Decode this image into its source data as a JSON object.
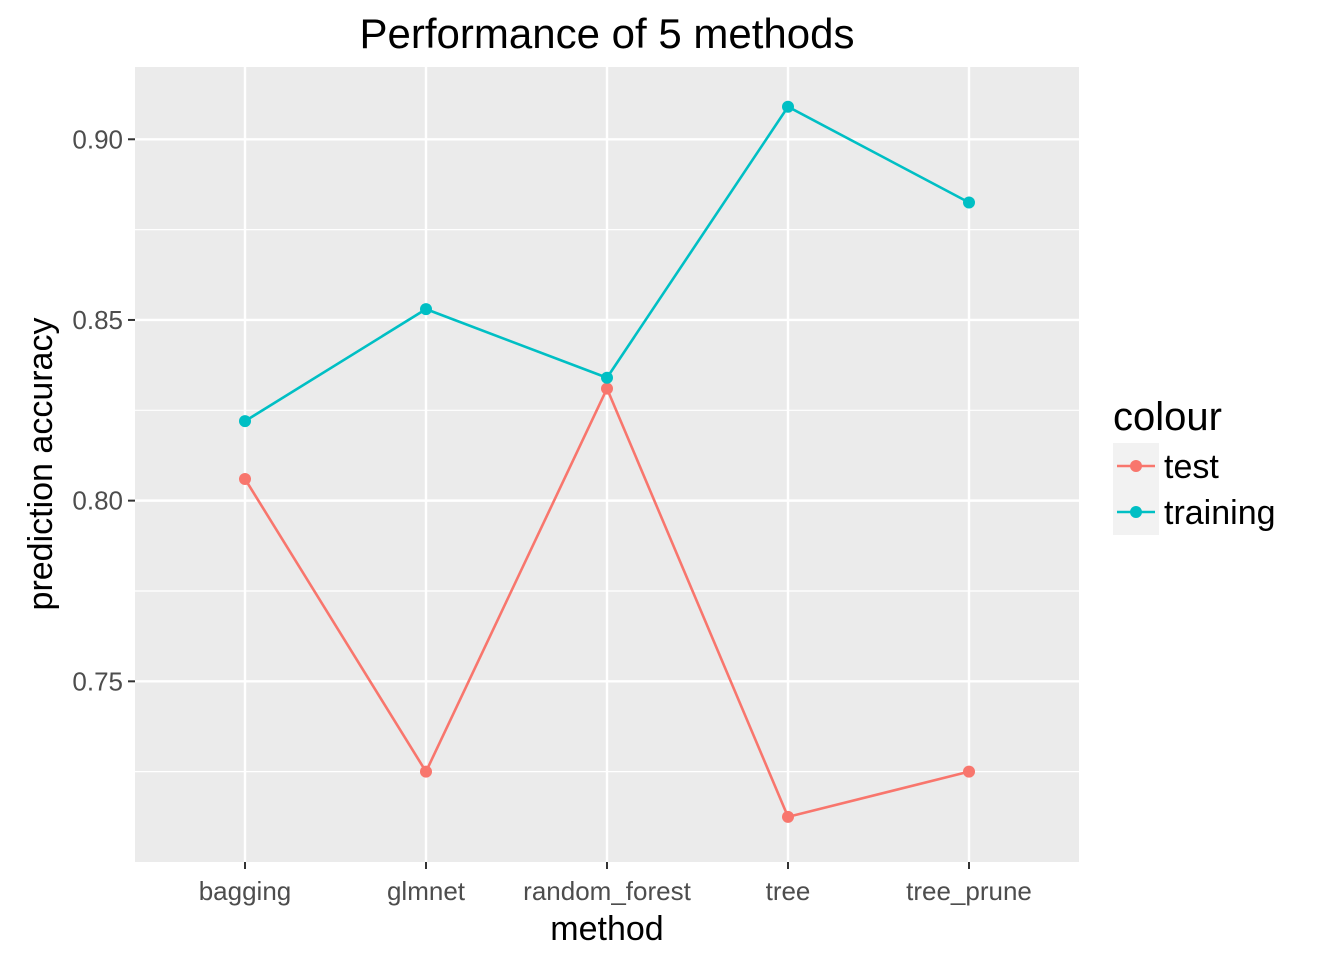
{
  "chart_data": {
    "type": "line",
    "title": "Performance of 5 methods",
    "xlabel": "method",
    "ylabel": "prediction accuracy",
    "categories": [
      "bagging",
      "glmnet",
      "random_forest",
      "tree",
      "tree_prune"
    ],
    "y_ticks": [
      0.75,
      0.8,
      0.85,
      0.9
    ],
    "y_tick_labels": [
      "0.75",
      "0.80",
      "0.85",
      "0.90"
    ],
    "ylim": [
      0.7,
      0.92
    ],
    "grid": true,
    "legend": {
      "title": "colour",
      "position": "right"
    },
    "series": [
      {
        "name": "test",
        "color": "#F8766D",
        "values": [
          0.806,
          0.725,
          0.831,
          0.7125,
          0.725
        ]
      },
      {
        "name": "training",
        "color": "#00BFC4",
        "values": [
          0.822,
          0.853,
          0.834,
          0.909,
          0.8825
        ]
      }
    ]
  }
}
